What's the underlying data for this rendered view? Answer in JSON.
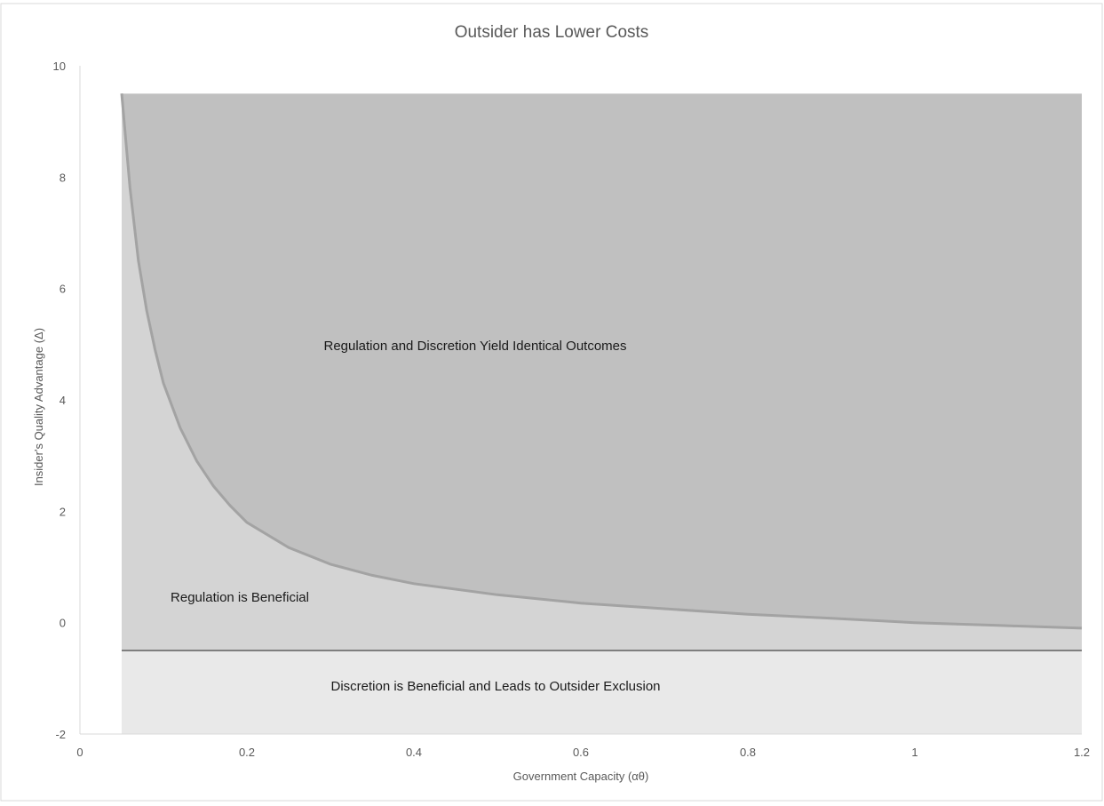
{
  "chart_data": {
    "type": "area",
    "title": "Outsider has Lower Costs",
    "xlabel": "Government Capacity (αθ)",
    "ylabel": "Insider's Quality Advantage (Δ)",
    "xlim": [
      0,
      1.2
    ],
    "ylim": [
      -2,
      10
    ],
    "x_ticks": [
      "0",
      "0.2",
      "0.4",
      "0.6",
      "0.8",
      "1",
      "1.2"
    ],
    "y_ticks": [
      "-2",
      "0",
      "2",
      "4",
      "6",
      "8",
      "10"
    ],
    "grid": false,
    "x_domain": [
      0.05,
      1.2
    ],
    "upper_bound": 9.5,
    "lower_bound": -2,
    "exclusion_threshold": -0.5,
    "boundary_curve": {
      "x": [
        0.05,
        0.06,
        0.07,
        0.08,
        0.09,
        0.1,
        0.12,
        0.14,
        0.16,
        0.18,
        0.2,
        0.25,
        0.3,
        0.35,
        0.4,
        0.5,
        0.6,
        0.7,
        0.8,
        0.9,
        1.0,
        1.1,
        1.2
      ],
      "y": [
        9.5,
        7.8,
        6.5,
        5.6,
        4.9,
        4.3,
        3.5,
        2.9,
        2.45,
        2.1,
        1.8,
        1.35,
        1.05,
        0.85,
        0.7,
        0.5,
        0.35,
        0.25,
        0.15,
        0.08,
        0.0,
        -0.05,
        -0.1
      ]
    },
    "regions": [
      {
        "name": "Regulation and Discretion Yield Identical Outcomes",
        "fill": "#c0c0c0"
      },
      {
        "name": "Regulation is Beneficial",
        "fill": "#d4d4d4"
      },
      {
        "name": "Discretion is Beneficial and Leads to Outsider Exclusion",
        "fill": "#e9e9e9"
      }
    ],
    "curve_color": "#a3a3a3",
    "threshold_color": "#7f7f7f",
    "axis_color": "#d9d9d9"
  }
}
